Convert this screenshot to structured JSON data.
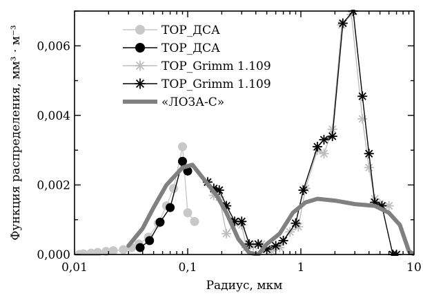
{
  "chart_data": {
    "type": "line",
    "xlabel": "Радиус, мкм",
    "ylabel": "Функция распределения, мм³ · м⁻³",
    "xscale": "log",
    "xlim": [
      0.01,
      10
    ],
    "ylim": [
      0,
      0.007
    ],
    "x_ticks": [
      {
        "value": 0.01,
        "label": "0,01"
      },
      {
        "value": 0.1,
        "label": "0,1"
      },
      {
        "value": 1,
        "label": "1"
      },
      {
        "value": 10,
        "label": "10"
      }
    ],
    "y_ticks": [
      {
        "value": 0,
        "label": "0,000"
      },
      {
        "value": 0.002,
        "label": "0,002"
      },
      {
        "value": 0.004,
        "label": "0,004"
      },
      {
        "value": 0.006,
        "label": "0,006"
      }
    ],
    "legend_position": "top-left",
    "series": [
      {
        "name": "TOP_ДСА",
        "color": "#c8c8c8",
        "marker": "circle-filled",
        "points": [
          [
            0.011,
            0.0
          ],
          [
            0.012,
            2e-05
          ],
          [
            0.014,
            4e-05
          ],
          [
            0.016,
            6e-05
          ],
          [
            0.019,
            9e-05
          ],
          [
            0.022,
            0.00011
          ],
          [
            0.027,
            0.00014
          ],
          [
            0.032,
            0.0002
          ],
          [
            0.037,
            0.0003
          ],
          [
            0.045,
            0.0005
          ],
          [
            0.055,
            0.0009
          ],
          [
            0.065,
            0.0014
          ],
          [
            0.075,
            0.0019
          ],
          [
            0.09,
            0.0031
          ],
          [
            0.1,
            0.0012
          ],
          [
            0.115,
            0.00095
          ]
        ]
      },
      {
        "name": "TOP_ДСА",
        "color": "#000000",
        "marker": "circle-filled",
        "points": [
          [
            0.038,
            0.0002
          ],
          [
            0.046,
            0.0004
          ],
          [
            0.057,
            0.00093
          ],
          [
            0.07,
            0.00135
          ],
          [
            0.09,
            0.00268
          ],
          [
            0.1,
            0.0024
          ]
        ]
      },
      {
        "name": "TOP_Grimm 1.109",
        "color": "#bdbdbd",
        "marker": "asterisk",
        "points": [
          [
            0.15,
            0.0021
          ],
          [
            0.17,
            0.0017
          ],
          [
            0.19,
            0.00165
          ],
          [
            0.22,
            0.0006
          ],
          [
            0.26,
            0.0009
          ],
          [
            0.3,
            0.00085
          ],
          [
            0.33,
            0.0002
          ],
          [
            0.38,
            0.00025
          ],
          [
            0.45,
            0.0003
          ],
          [
            0.55,
            0.0001
          ],
          [
            0.65,
            0.0002
          ],
          [
            0.8,
            0.00065
          ],
          [
            0.95,
            0.0008
          ],
          [
            1.1,
            0.0019
          ],
          [
            1.4,
            0.003
          ],
          [
            1.6,
            0.0029
          ],
          [
            1.9,
            0.0036
          ],
          [
            2.3,
            0.0066
          ],
          [
            2.8,
            0.0069
          ],
          [
            3.5,
            0.0039
          ],
          [
            4.0,
            0.0025
          ],
          [
            4.5,
            0.0016
          ],
          [
            5.0,
            0.00145
          ],
          [
            6.0,
            0.0014
          ]
        ]
      },
      {
        "name": "TOP_Grimm 1.109",
        "color": "#000000",
        "marker": "asterisk",
        "points": [
          [
            0.15,
            0.00208
          ],
          [
            0.17,
            0.0019
          ],
          [
            0.19,
            0.00185
          ],
          [
            0.22,
            0.0014
          ],
          [
            0.26,
            0.00095
          ],
          [
            0.3,
            0.00095
          ],
          [
            0.35,
            0.0003
          ],
          [
            0.42,
            0.0003
          ],
          [
            0.5,
            0.00015
          ],
          [
            0.6,
            0.00025
          ],
          [
            0.7,
            0.0004
          ],
          [
            0.9,
            0.0009
          ],
          [
            1.05,
            0.00185
          ],
          [
            1.4,
            0.0031
          ],
          [
            1.6,
            0.0033
          ],
          [
            1.9,
            0.0034
          ],
          [
            2.35,
            0.00665
          ],
          [
            2.9,
            0.007
          ],
          [
            3.5,
            0.00455
          ],
          [
            4.0,
            0.0029
          ],
          [
            4.5,
            0.0015
          ],
          [
            5.2,
            0.0014
          ],
          [
            6.5,
            0.0
          ],
          [
            7.0,
            0.0
          ]
        ]
      },
      {
        "name": "«ЛОЗА-С»",
        "color": "#808080",
        "marker": "none",
        "line_width": "thick",
        "points": [
          [
            0.03,
            0.00025
          ],
          [
            0.04,
            0.00075
          ],
          [
            0.05,
            0.00135
          ],
          [
            0.065,
            0.002
          ],
          [
            0.09,
            0.0025
          ],
          [
            0.11,
            0.00258
          ],
          [
            0.14,
            0.00215
          ],
          [
            0.18,
            0.0017
          ],
          [
            0.22,
            0.0012
          ],
          [
            0.28,
            0.00045
          ],
          [
            0.35,
            5e-05
          ],
          [
            0.42,
            0.0
          ],
          [
            0.5,
            0.0003
          ],
          [
            0.65,
            0.0006
          ],
          [
            0.85,
            0.0012
          ],
          [
            1.1,
            0.0015
          ],
          [
            1.4,
            0.0016
          ],
          [
            2.0,
            0.00155
          ],
          [
            3.0,
            0.00145
          ],
          [
            4.5,
            0.0014
          ],
          [
            6.0,
            0.0012
          ],
          [
            7.5,
            0.00085
          ],
          [
            9.0,
            0.0001
          ],
          [
            10.0,
            0.0
          ]
        ]
      }
    ]
  }
}
